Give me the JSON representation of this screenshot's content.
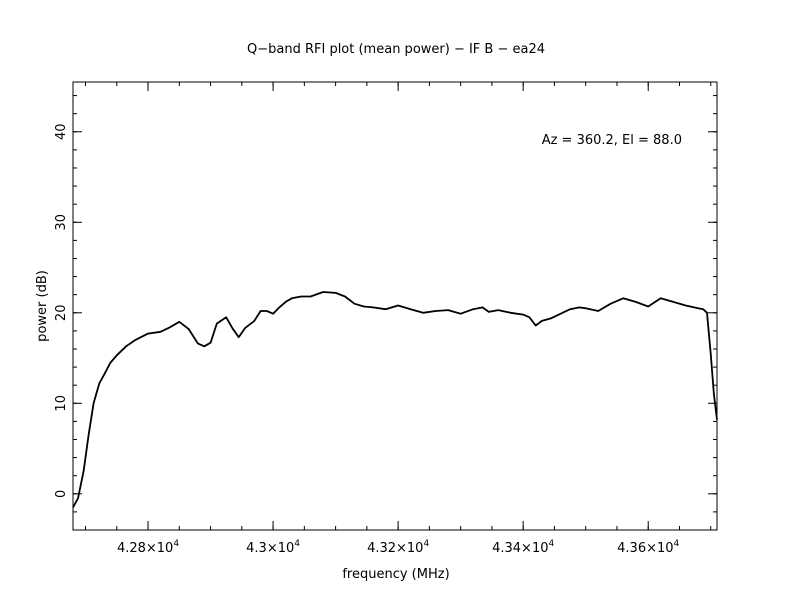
{
  "chart_data": {
    "type": "line",
    "title": "Q−band RFI plot (mean power) − IF B − ea24",
    "xlabel": "frequency (MHz)",
    "ylabel": "power (dB)",
    "annotation": "Az = 360.2, El = 88.0",
    "xlim": [
      42680,
      43710
    ],
    "ylim": [
      -4,
      45.5
    ],
    "x_ticks": [
      {
        "value": 42800,
        "mantissa": "4.28",
        "exponent": "4"
      },
      {
        "value": 43000,
        "mantissa": "4.3",
        "exponent": "4"
      },
      {
        "value": 43200,
        "mantissa": "4.32",
        "exponent": "4"
      },
      {
        "value": 43400,
        "mantissa": "4.34",
        "exponent": "4"
      },
      {
        "value": 43600,
        "mantissa": "4.36",
        "exponent": "4"
      }
    ],
    "x_tick_suffix": "×10",
    "y_ticks": [
      {
        "value": 0,
        "label": "0"
      },
      {
        "value": 10,
        "label": "10"
      },
      {
        "value": 20,
        "label": "20"
      },
      {
        "value": 30,
        "label": "30"
      },
      {
        "value": 40,
        "label": "40"
      }
    ],
    "x_minor_step": 50,
    "y_minor_step": 2,
    "grid": false,
    "line_color": "#000000",
    "series": [
      {
        "x": [
          42680,
          42688,
          42697,
          42705,
          42713,
          42722,
          42730,
          42740,
          42750,
          42765,
          42780,
          42800,
          42820,
          42835,
          42850,
          42865,
          42880,
          42890,
          42900,
          42910,
          42925,
          42935,
          42945,
          42955,
          42970,
          42980,
          42990,
          43000,
          43010,
          43020,
          43030,
          43045,
          43060,
          43080,
          43100,
          43115,
          43130,
          43145,
          43160,
          43180,
          43200,
          43220,
          43240,
          43260,
          43280,
          43300,
          43320,
          43335,
          43345,
          43360,
          43380,
          43400,
          43410,
          43420,
          43430,
          43445,
          43460,
          43475,
          43490,
          43500,
          43520,
          43540,
          43560,
          43580,
          43600,
          43620,
          43640,
          43660,
          43680,
          43688,
          43694,
          43700,
          43705,
          43710
        ],
        "y": [
          -1.5,
          -0.5,
          2.5,
          6.5,
          10.0,
          12.2,
          13.2,
          14.5,
          15.3,
          16.3,
          17.0,
          17.7,
          17.9,
          18.4,
          19.0,
          18.2,
          16.6,
          16.3,
          16.7,
          18.8,
          19.5,
          18.3,
          17.3,
          18.3,
          19.1,
          20.2,
          20.2,
          19.9,
          20.6,
          21.2,
          21.6,
          21.8,
          21.8,
          22.3,
          22.2,
          21.8,
          21.0,
          20.7,
          20.6,
          20.4,
          20.8,
          20.4,
          20.0,
          20.2,
          20.3,
          19.9,
          20.4,
          20.6,
          20.1,
          20.3,
          20.0,
          19.8,
          19.5,
          18.6,
          19.1,
          19.4,
          19.9,
          20.4,
          20.6,
          20.5,
          20.2,
          21.0,
          21.6,
          21.2,
          20.7,
          21.6,
          21.2,
          20.8,
          20.5,
          20.4,
          20.0,
          15.5,
          11.0,
          8.2
        ]
      }
    ]
  }
}
